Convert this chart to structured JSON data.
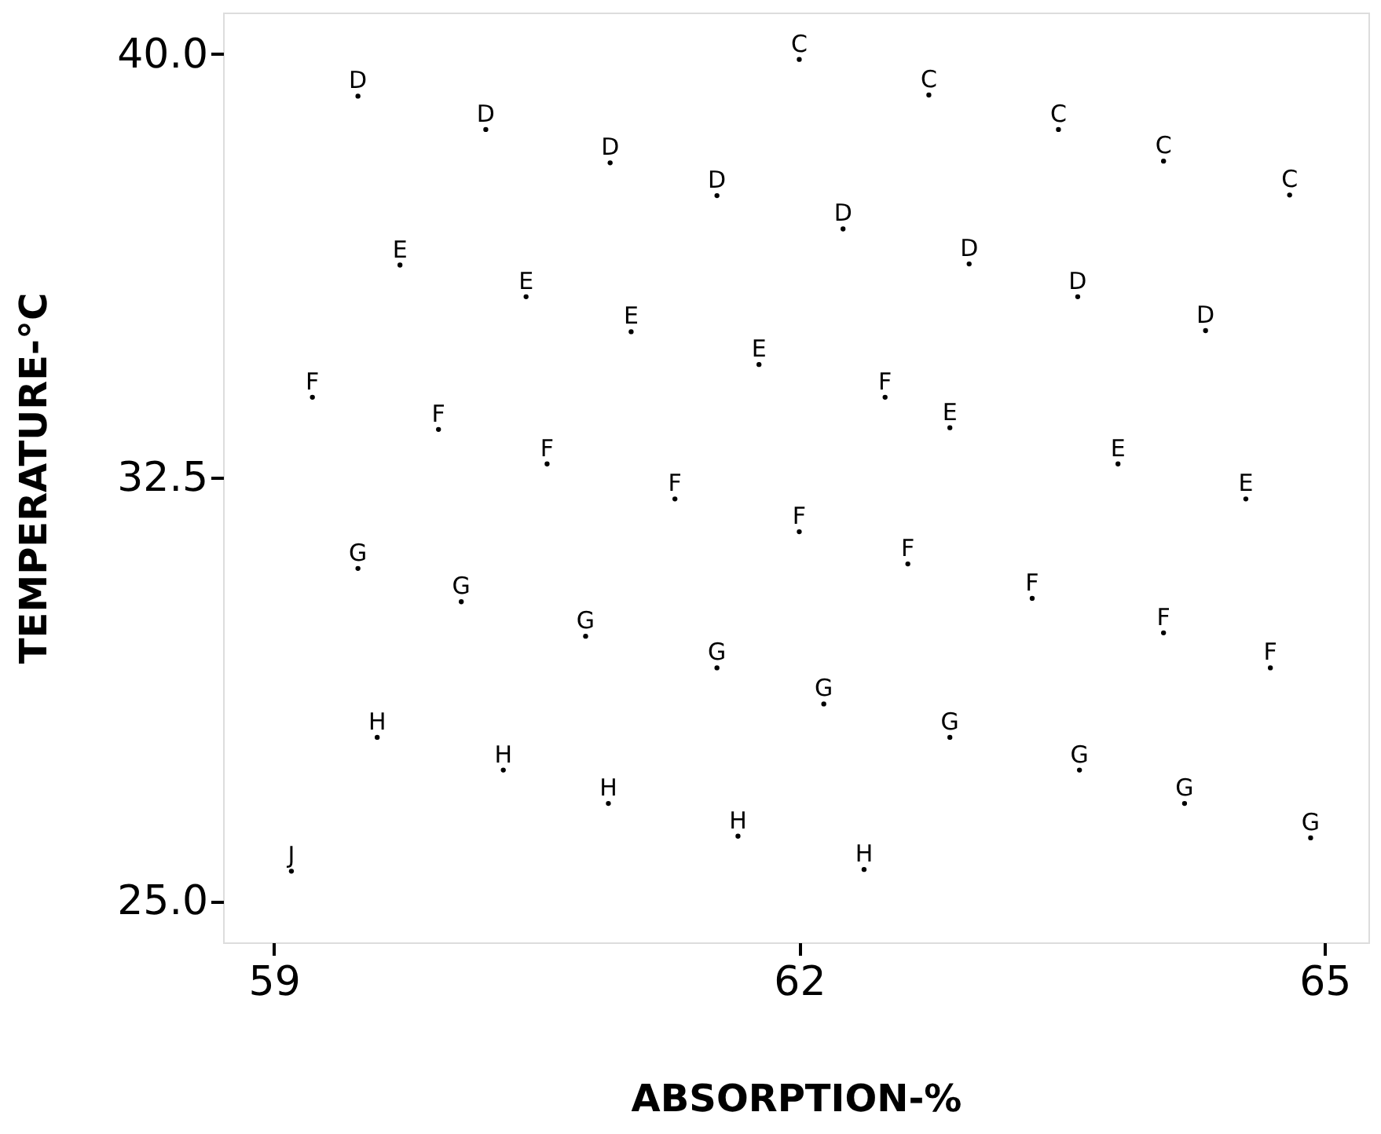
{
  "chart_data": {
    "type": "scatter",
    "xlabel": "ABSORPTION-%",
    "ylabel": "TEMPERATURE-°C",
    "xlim": [
      58.71,
      65.25
    ],
    "ylim": [
      24.27,
      40.73
    ],
    "xticks": [
      59,
      62,
      65
    ],
    "yticks": [
      {
        "value": 25,
        "label": "25.0"
      },
      32.5,
      {
        "value": 40,
        "label": "40.0"
      }
    ],
    "grid": false,
    "legend": false,
    "marker": "circle",
    "series": [
      {
        "name": "C",
        "color": "#000000",
        "x": [
          62.0,
          62.74,
          63.48,
          64.08,
          64.8
        ],
        "values": [
          39.9,
          39.27,
          38.66,
          38.1,
          37.5
        ]
      },
      {
        "name": "D",
        "color": "#000000",
        "x": [
          59.48,
          60.21,
          60.92,
          61.53,
          62.25,
          62.97,
          63.59,
          64.32
        ],
        "values": [
          39.25,
          38.66,
          38.07,
          37.49,
          36.9,
          36.28,
          35.7,
          35.1
        ]
      },
      {
        "name": "E",
        "color": "#000000",
        "x": [
          59.72,
          60.44,
          61.04,
          61.77,
          62.86,
          63.82,
          64.55
        ],
        "values": [
          36.26,
          35.7,
          35.08,
          34.5,
          33.38,
          32.74,
          32.12
        ]
      },
      {
        "name": "F",
        "color": "#000000",
        "x": [
          59.22,
          59.94,
          60.56,
          61.29,
          62.0,
          62.49,
          62.62,
          63.33,
          64.08,
          64.69
        ],
        "values": [
          33.92,
          33.35,
          32.74,
          32.12,
          31.54,
          33.92,
          30.97,
          30.36,
          29.75,
          29.13
        ]
      },
      {
        "name": "G",
        "color": "#000000",
        "x": [
          59.48,
          60.07,
          60.78,
          61.53,
          62.14,
          62.86,
          63.6,
          64.2,
          64.92
        ],
        "values": [
          30.89,
          30.3,
          29.69,
          29.13,
          28.49,
          27.9,
          27.32,
          26.73,
          26.12
        ]
      },
      {
        "name": "H",
        "color": "#000000",
        "x": [
          59.59,
          60.31,
          60.91,
          61.65,
          62.37
        ],
        "values": [
          27.9,
          27.32,
          26.73,
          26.15,
          25.56
        ]
      },
      {
        "name": "J",
        "color": "#000000",
        "x": [
          59.1
        ],
        "values": [
          25.53
        ]
      }
    ]
  }
}
